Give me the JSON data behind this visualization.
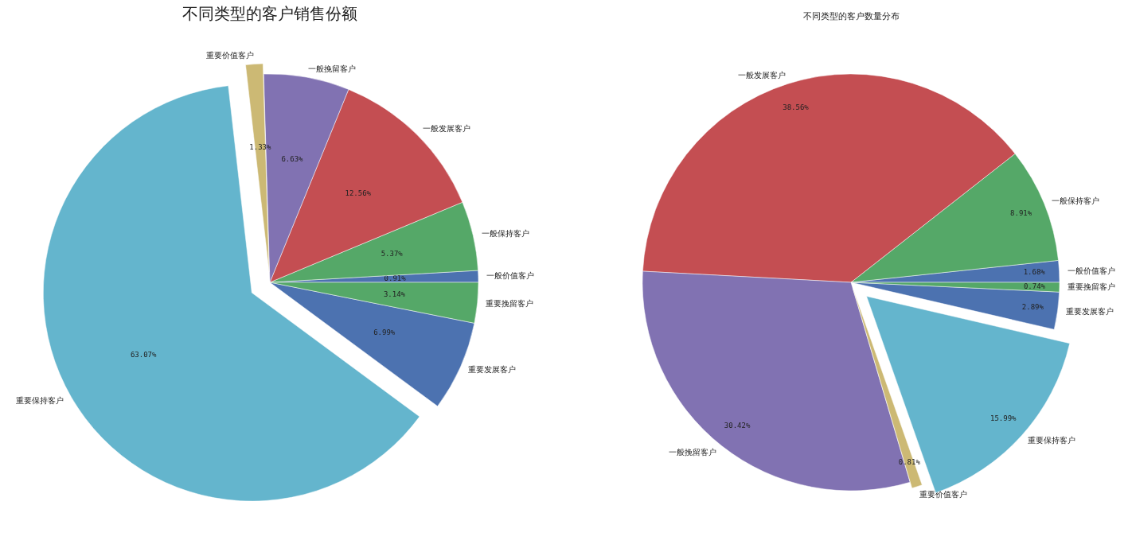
{
  "chart_data": [
    {
      "type": "pie",
      "title": "不同类型的客户销售份额",
      "categories": [
        "一般价值客户",
        "一般保持客户",
        "一般发展客户",
        "一般挽留客户",
        "重要价值客户",
        "重要保持客户",
        "重要发展客户",
        "重要挽留客户"
      ],
      "values": [
        0.91,
        5.37,
        12.56,
        6.63,
        1.33,
        63.07,
        6.99,
        3.14
      ],
      "value_labels": [
        "0.91%",
        "5.37%",
        "12.56%",
        "6.63%",
        "1.33%",
        "63.07%",
        "6.99%",
        "3.14%"
      ],
      "colors": [
        "#4c72b0",
        "#55a868",
        "#c44e52",
        "#8172b2",
        "#ccb974",
        "#64b5cd",
        "#4c72b0",
        "#55a868"
      ]
    },
    {
      "type": "pie",
      "title": "不同类型的客户数量分布",
      "categories": [
        "一般价值客户",
        "一般保持客户",
        "一般发展客户",
        "一般挽留客户",
        "重要价值客户",
        "重要保持客户",
        "重要发展客户",
        "重要挽留客户"
      ],
      "values": [
        1.68,
        8.91,
        38.56,
        30.42,
        0.81,
        15.99,
        2.89,
        0.74
      ],
      "value_labels": [
        "1.68%",
        "8.91%",
        "38.56%",
        "30.42%",
        "0.81%",
        "15.99%",
        "2.89%",
        "0.74%"
      ],
      "colors": [
        "#4c72b0",
        "#55a868",
        "#c44e52",
        "#8172b2",
        "#ccb974",
        "#64b5cd",
        "#4c72b0",
        "#55a868"
      ]
    }
  ]
}
